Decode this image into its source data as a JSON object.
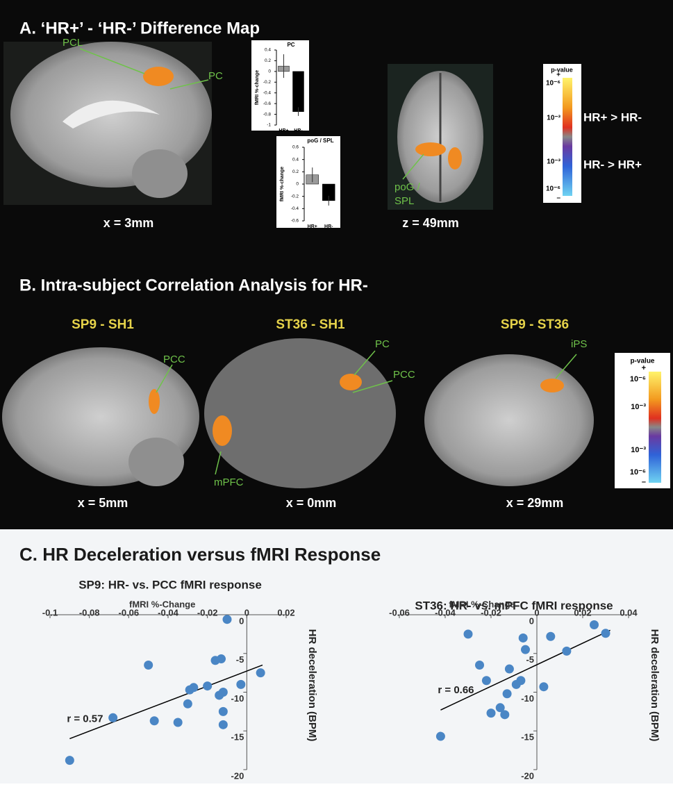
{
  "panel_a": {
    "title": "A. ‘HR+’ - ‘HR-’ Difference Map",
    "brain_labels": [
      "PCL",
      "PC",
      "poG /",
      "SPL"
    ],
    "coords": [
      "x = 3mm",
      "z = 49mm"
    ],
    "colorbar": {
      "title": "p-value",
      "ticks": [
        "+",
        "10⁻⁶",
        "10⁻³",
        "10⁻³",
        "10⁻⁶",
        "–"
      ],
      "contrasts": [
        "HR+ > HR-",
        "HR- > HR+"
      ]
    }
  },
  "panel_b": {
    "title": "B. Intra-subject Correlation Analysis for HR-",
    "subtitles": [
      "SP9 - SH1",
      "ST36 - SH1",
      "SP9 - ST36"
    ],
    "brain_labels": [
      "PCC",
      "PC",
      "PCC",
      "mPFC",
      "iPS"
    ],
    "coords": [
      "x = 5mm",
      "x = 0mm",
      "x = 29mm"
    ],
    "colorbar": {
      "title": "p-value",
      "ticks": [
        "+",
        "10⁻⁶",
        "10⁻³",
        "10⁻³",
        "10⁻⁶",
        "–"
      ]
    }
  },
  "panel_c": {
    "title": "C. HR Deceleration versus fMRI Response"
  },
  "chart_data": [
    {
      "type": "bar",
      "title": "PC",
      "y_label": "fMRI %-change",
      "categories": [
        "HR+",
        "HR-"
      ],
      "values": [
        0.1,
        -0.75
      ],
      "errors": [
        0.22,
        0.08
      ],
      "colors": [
        "#9a9a9a",
        "#000000"
      ],
      "ylim": [
        -1,
        0.4
      ],
      "yticks": [
        -1,
        -0.8,
        -0.6,
        -0.4,
        -0.2,
        0,
        0.2,
        0.4
      ]
    },
    {
      "type": "bar",
      "title": "poG / SPL",
      "y_label": "fMRI %-change",
      "categories": [
        "HR+",
        "HR-"
      ],
      "values": [
        0.15,
        -0.27
      ],
      "errors": [
        0.12,
        0.08
      ],
      "colors": [
        "#9a9a9a",
        "#000000"
      ],
      "ylim": [
        -0.6,
        0.6
      ],
      "yticks": [
        -0.6,
        -0.4,
        -0.2,
        0,
        0.2,
        0.4,
        0.6
      ]
    },
    {
      "type": "scatter",
      "title": "SP9: HR- vs. PCC fMRI response",
      "x_label": "fMRI %-Change",
      "y_label": "HR deceleration (BPM)",
      "annotation": "r = 0.57",
      "color": "#4a86c5",
      "x": [
        -0.09,
        -0.068,
        -0.05,
        -0.047,
        -0.035,
        -0.03,
        -0.029,
        -0.027,
        -0.02,
        -0.016,
        -0.013,
        -0.014,
        -0.012,
        -0.01,
        -0.012,
        -0.003,
        0.007,
        -0.012
      ],
      "values": [
        -18.8,
        -13.3,
        -6.5,
        -13.7,
        -13.9,
        -11.5,
        -9.7,
        -9.4,
        -9.2,
        -5.9,
        -5.7,
        -10.4,
        -12.5,
        -0.6,
        -14.2,
        -9,
        -7.5,
        -10
      ],
      "trendline": {
        "x": [
          -0.09,
          0.008
        ],
        "values": [
          -16,
          -6.5
        ]
      },
      "xlim": [
        -0.1,
        0.02
      ],
      "xticks": [
        -0.1,
        -0.08,
        -0.06,
        -0.04,
        -0.02,
        0,
        0.02
      ],
      "ylim": [
        -20,
        0
      ],
      "yticks": [
        0,
        -5,
        -10,
        -15,
        -20
      ]
    },
    {
      "type": "scatter",
      "title": "ST36: HR- vs. mPFC fMRI response",
      "x_label": "fMRI %-Change",
      "y_label": "HR deceleration (BPM)",
      "annotation": "r = 0.66",
      "color": "#4a86c5",
      "x": [
        -0.042,
        -0.03,
        -0.025,
        -0.022,
        -0.02,
        -0.016,
        -0.014,
        -0.013,
        -0.012,
        -0.009,
        -0.007,
        -0.006,
        -0.005,
        0.003,
        0.006,
        0.013,
        0.025,
        0.03
      ],
      "values": [
        -15.7,
        -2.5,
        -6.5,
        -8.5,
        -12.7,
        -12,
        -12.9,
        -10.2,
        -7,
        -9,
        -8.5,
        -3,
        -4.5,
        -9.3,
        -2.8,
        -4.7,
        -1.3,
        -2.4
      ],
      "trendline": {
        "x": [
          -0.042,
          0.032
        ],
        "values": [
          -12.3,
          -2
        ]
      },
      "xlim": [
        -0.06,
        0.04
      ],
      "xticks": [
        -0.06,
        -0.04,
        -0.02,
        0,
        0.02,
        0.04
      ],
      "ylim": [
        -20,
        0
      ],
      "yticks": [
        0,
        -5,
        -10,
        -15,
        -20
      ]
    }
  ]
}
